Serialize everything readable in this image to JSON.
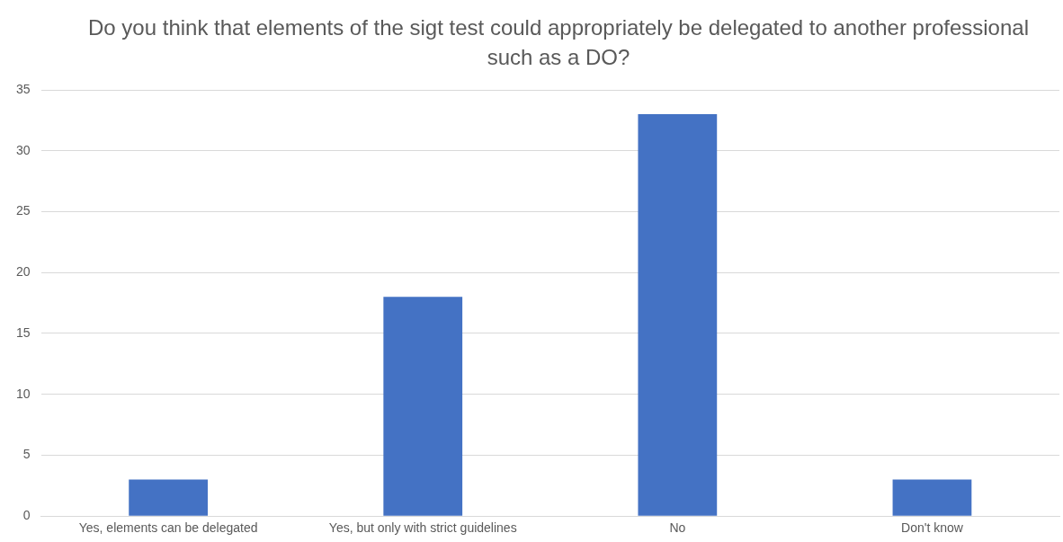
{
  "chart_data": {
    "type": "bar",
    "title": "Do you think that elements of the sigt test could appropriately be delegated to another professional such as a DO?",
    "categories": [
      "Yes, elements can be delegated",
      "Yes, but only with strict guidelines",
      "No",
      "Don't know"
    ],
    "values": [
      3,
      18,
      33,
      3
    ],
    "color": "#4472c4",
    "ylim": [
      0,
      35
    ],
    "yticks": [
      0,
      5,
      10,
      15,
      20,
      25,
      30,
      35
    ],
    "grid": "y"
  }
}
